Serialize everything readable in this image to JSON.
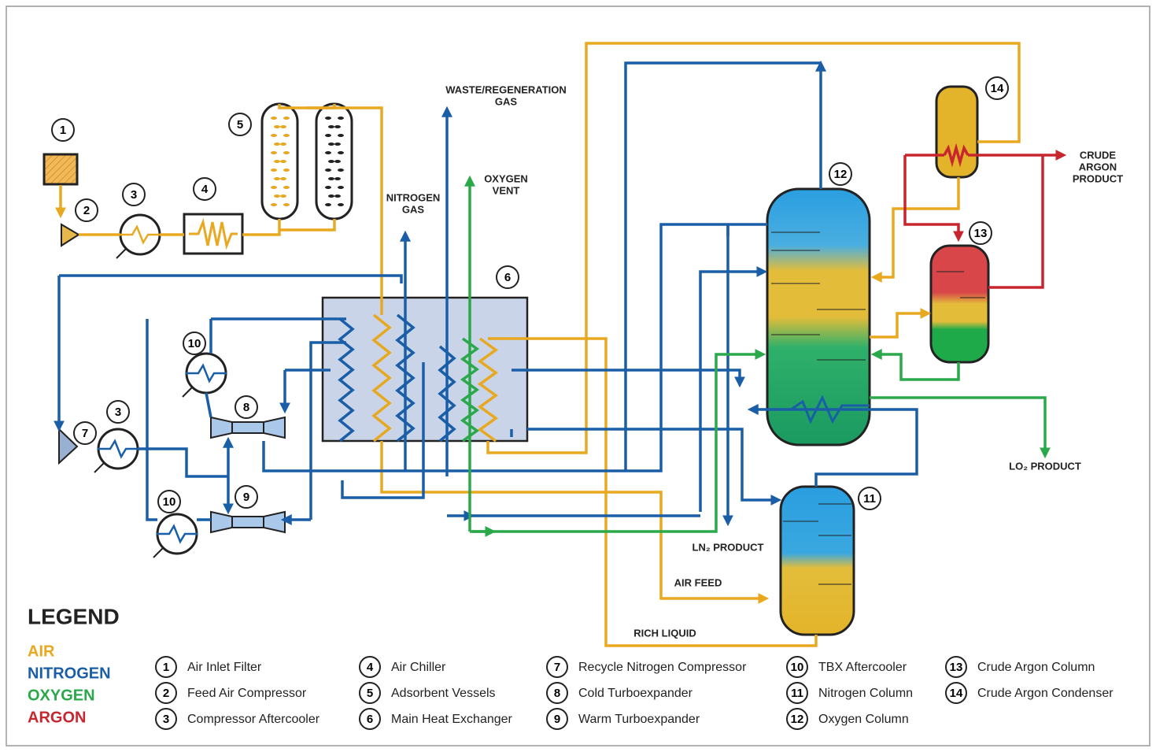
{
  "stream_labels": [
    {
      "lines": [
        "WASTE/REGENERATION",
        "GAS"
      ]
    },
    {
      "lines": [
        "NITROGEN",
        "GAS"
      ]
    },
    {
      "lines": [
        "OXYGEN",
        "VENT"
      ]
    },
    {
      "lines": [
        "CRUDE",
        "ARGON",
        "PRODUCT"
      ]
    },
    {
      "lines": [
        "LO₂ PRODUCT"
      ]
    },
    {
      "lines": [
        "LN₂ PRODUCT"
      ]
    },
    {
      "lines": [
        "AIR FEED"
      ]
    },
    {
      "lines": [
        "RICH LIQUID"
      ]
    }
  ],
  "callouts": [
    "1",
    "2",
    "3",
    "4",
    "5",
    "6",
    "7",
    "3",
    "10",
    "8",
    "10",
    "9",
    "11",
    "12",
    "13",
    "14"
  ],
  "legend": {
    "title": "LEGEND",
    "streams": [
      {
        "name": "AIR",
        "color": "#e8a820"
      },
      {
        "name": "NITROGEN",
        "color": "#1a5ea8"
      },
      {
        "name": "OXYGEN",
        "color": "#2aa84a"
      },
      {
        "name": "ARGON",
        "color": "#c8262e"
      }
    ],
    "items": [
      {
        "number": "1",
        "label": "Air Inlet Filter"
      },
      {
        "number": "2",
        "label": "Feed Air Compressor"
      },
      {
        "number": "3",
        "label": "Compressor Aftercooler"
      },
      {
        "number": "4",
        "label": "Air Chiller"
      },
      {
        "number": "5",
        "label": "Adsorbent Vessels"
      },
      {
        "number": "6",
        "label": "Main Heat Exchanger"
      },
      {
        "number": "7",
        "label": "Recycle Nitrogen Compressor"
      },
      {
        "number": "8",
        "label": "Cold Turboexpander"
      },
      {
        "number": "9",
        "label": "Warm Turboexpander"
      },
      {
        "number": "10",
        "label": "TBX Aftercooler"
      },
      {
        "number": "11",
        "label": "Nitrogen Column"
      },
      {
        "number": "12",
        "label": "Oxygen Column"
      },
      {
        "number": "13",
        "label": "Crude Argon Column"
      },
      {
        "number": "14",
        "label": "Crude Argon Condenser"
      }
    ]
  }
}
